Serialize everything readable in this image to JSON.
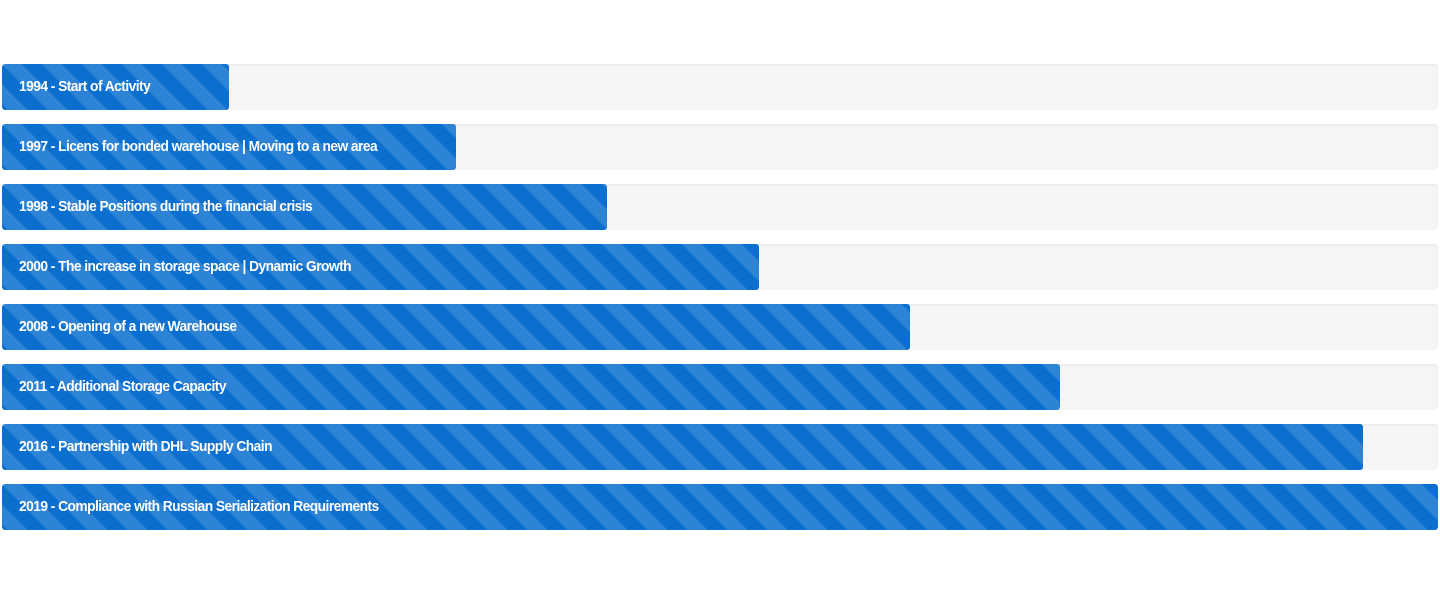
{
  "milestones": [
    {
      "label": "1994 - Start of Activity",
      "progress_percent": 15.8
    },
    {
      "label": "1997 - Licens for bonded warehouse | Moving to a new area",
      "progress_percent": 31.6
    },
    {
      "label": "1998 - Stable Positions during the financial crisis",
      "progress_percent": 42.1
    },
    {
      "label": "2000 - The increase in storage space | Dynamic Growth",
      "progress_percent": 52.7
    },
    {
      "label": "2008 - Opening of a new Warehouse",
      "progress_percent": 63.2
    },
    {
      "label": "2011 - Additional Storage Capacity",
      "progress_percent": 73.7
    },
    {
      "label": "2016 - Partnership with DHL Supply Chain",
      "progress_percent": 94.8
    },
    {
      "label": "2019 - Compliance with Russian Serialization Requirements",
      "progress_percent": 100
    }
  ],
  "colors": {
    "bar_fill": "#0a6fce",
    "track": "#f5f5f5",
    "label_text": "#ffffff"
  }
}
